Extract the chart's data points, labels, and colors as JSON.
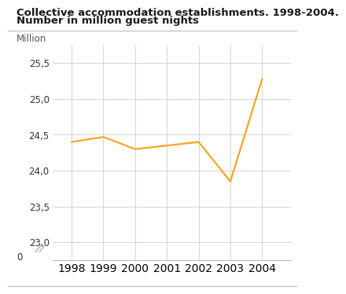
{
  "title_line1": "Collective accommodation establishments. 1998-2004.",
  "title_line2": "Number in million guest nights",
  "ylabel": "Million",
  "years": [
    1998,
    1999,
    2000,
    2001,
    2002,
    2003,
    2004
  ],
  "values": [
    24.4,
    24.47,
    24.3,
    24.35,
    24.4,
    23.85,
    25.28
  ],
  "line_color": "#F5A623",
  "background_color": "#ffffff",
  "grid_color": "#cccccc",
  "title_fontsize": 9.5,
  "axis_fontsize": 8.5,
  "line_width": 1.6,
  "ytick_vals": [
    23.0,
    23.5,
    24.0,
    24.5,
    25.0,
    25.5
  ],
  "ytick_labs": [
    "23,0",
    "23,5",
    "24,0",
    "24,5",
    "25,0",
    "25,5"
  ],
  "xlim": [
    1997.4,
    2004.9
  ],
  "ylim": [
    22.75,
    25.75
  ]
}
